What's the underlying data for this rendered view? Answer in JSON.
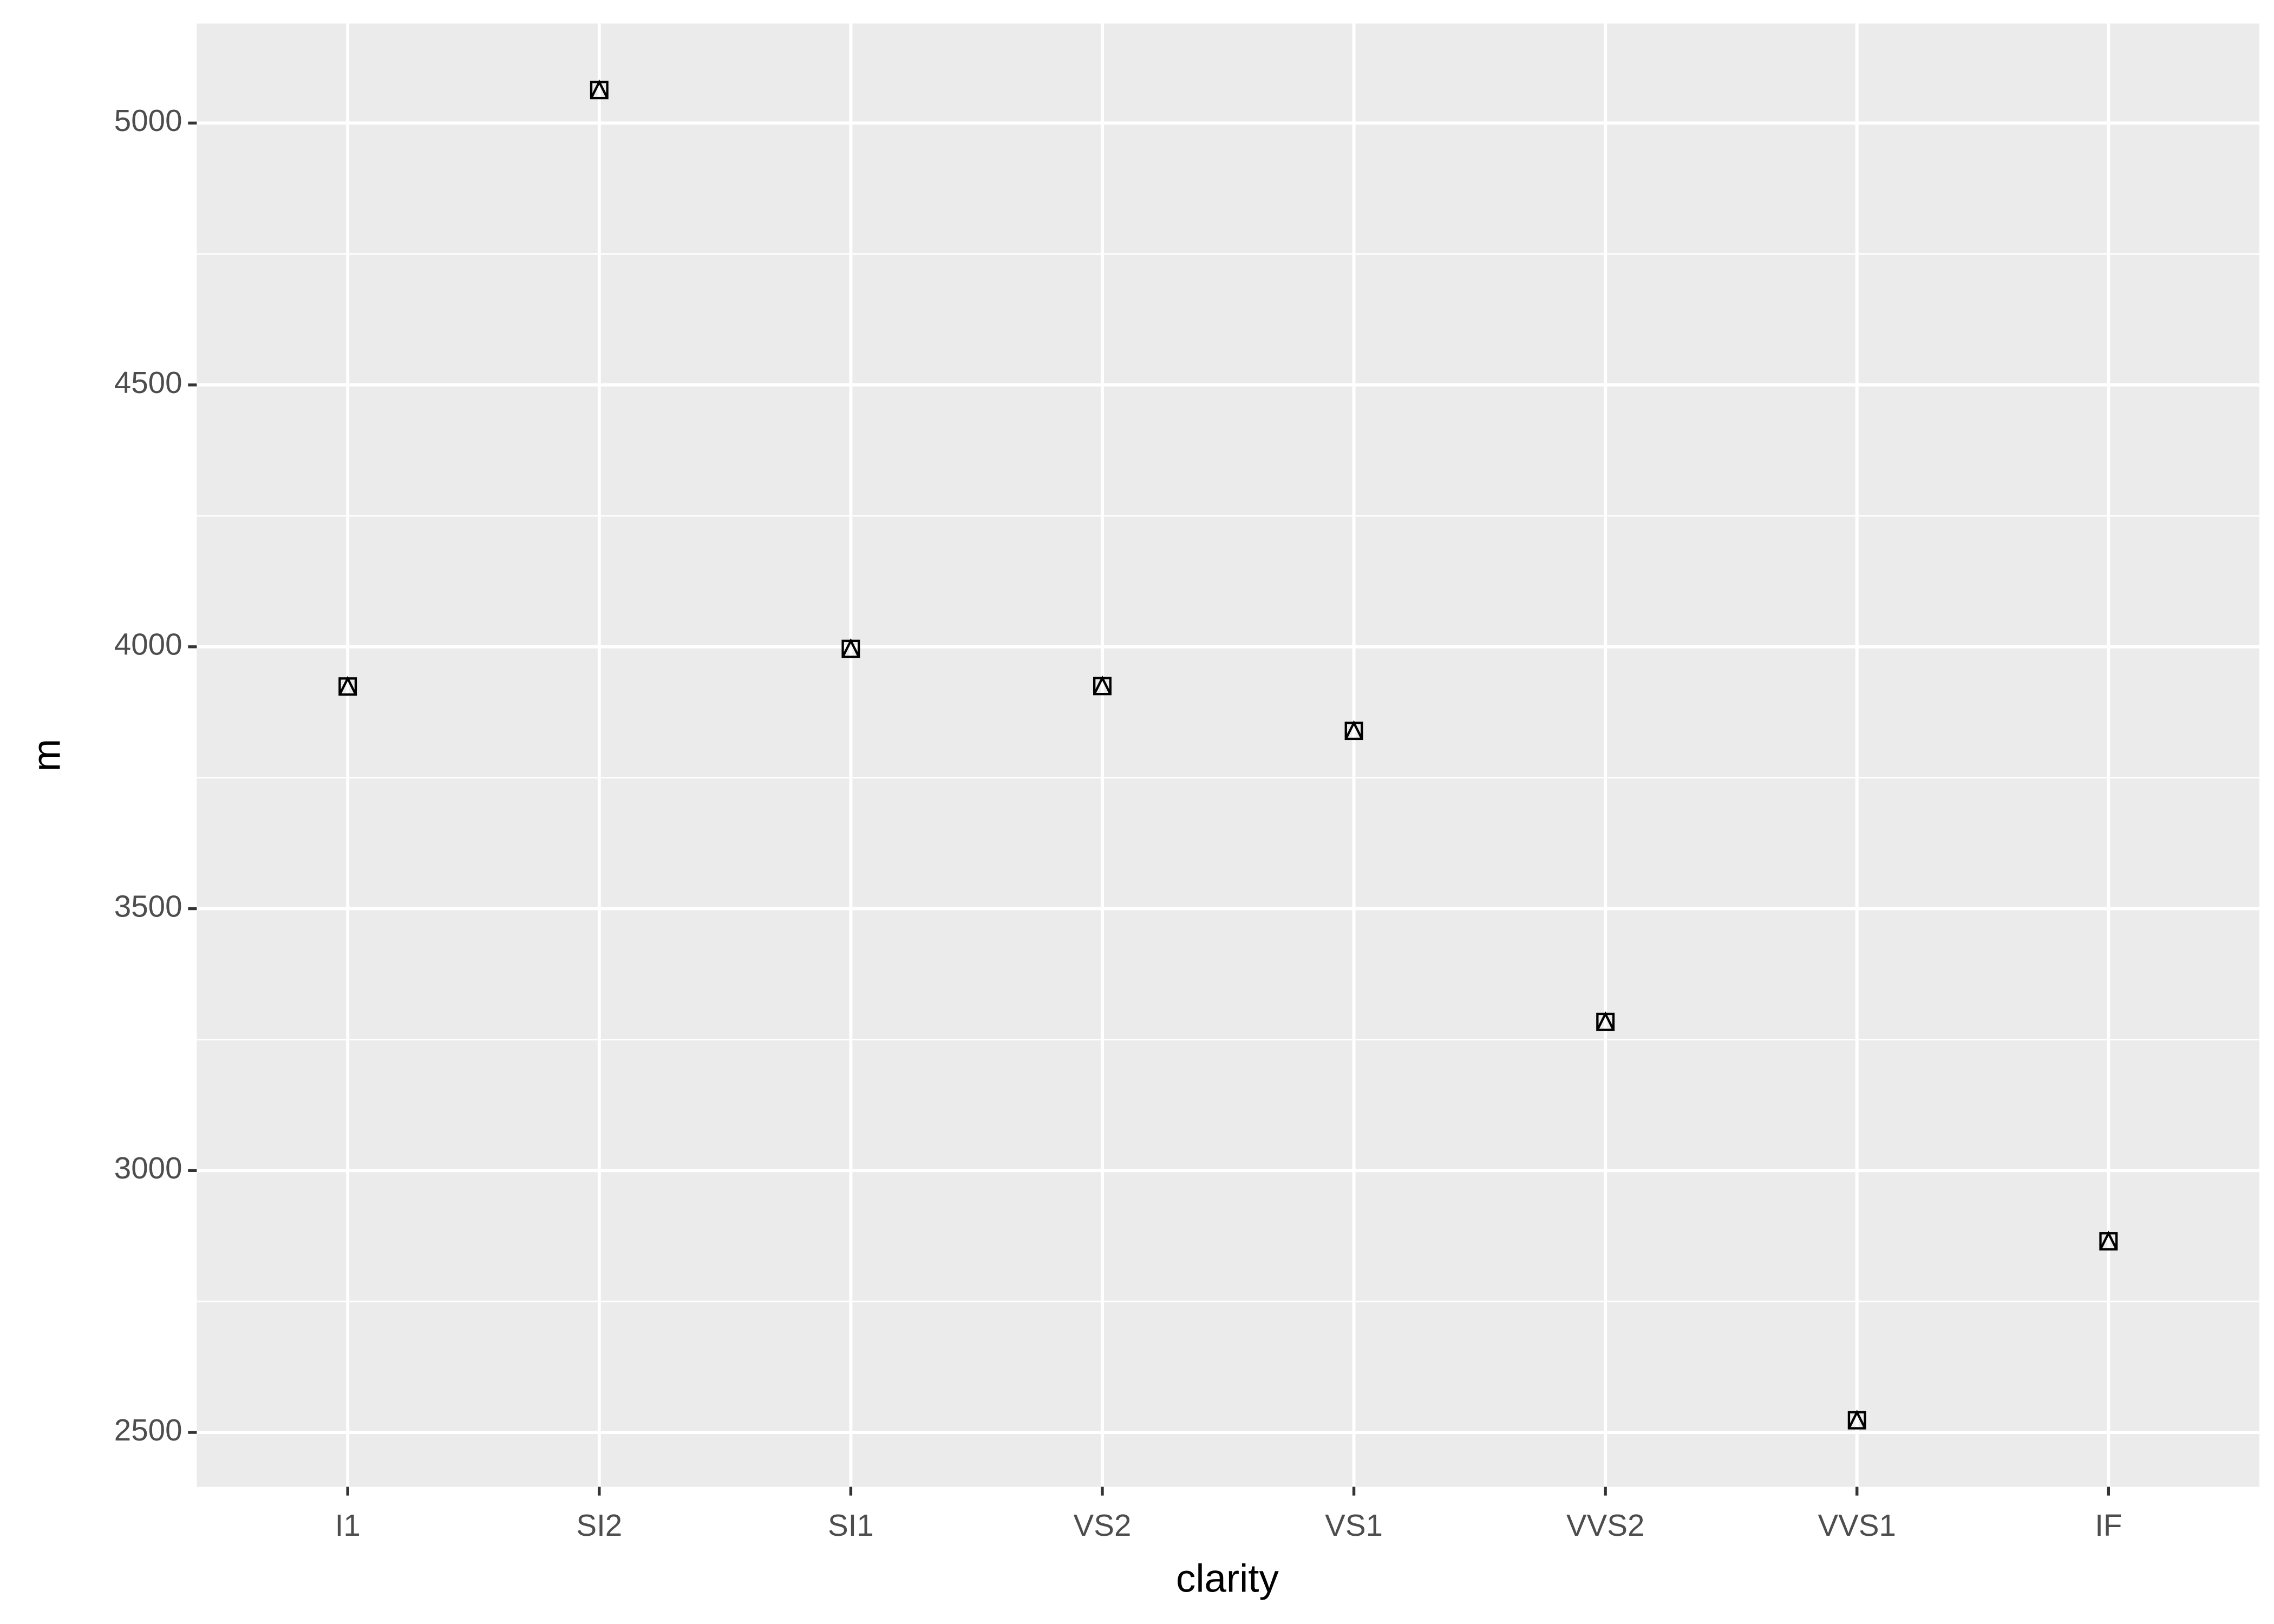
{
  "chart_data": {
    "type": "scatter",
    "x_label": "clarity",
    "y_label": "m",
    "categories": [
      "I1",
      "SI2",
      "SI1",
      "VS2",
      "VS1",
      "VVS2",
      "VVS1",
      "IF"
    ],
    "values": [
      3924.17,
      5063.03,
      3996.0,
      3924.99,
      3839.46,
      3283.74,
      2523.11,
      2864.84
    ],
    "color": "#000000",
    "ylim": [
      2396.1,
      5190.0
    ],
    "yticks": [
      2500,
      3000,
      3500,
      4000,
      4500,
      5000
    ],
    "grid": true
  }
}
